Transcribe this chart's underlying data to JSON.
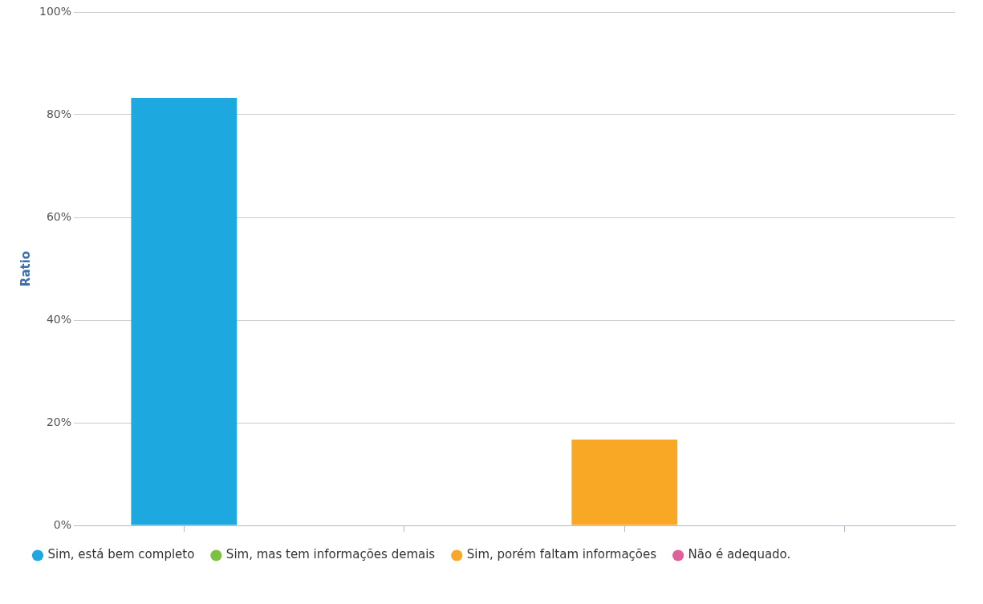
{
  "chart_data": {
    "type": "bar",
    "ylabel": "Ratio",
    "categories": [
      null,
      null,
      null,
      null
    ],
    "series": [
      {
        "name": "Sim, está bem completo",
        "color": "#1ea8e0",
        "values": [
          83.3,
          null,
          null,
          null
        ]
      },
      {
        "name": "Sim, mas tem informações demais",
        "color": "#7dc142",
        "values": [
          null,
          0,
          null,
          null
        ]
      },
      {
        "name": "Sim, porém faltam informações",
        "color": "#f9a825",
        "values": [
          null,
          null,
          16.7,
          null
        ]
      },
      {
        "name": "Não é adequado.",
        "color": "#e0609c",
        "values": [
          null,
          null,
          null,
          0
        ]
      }
    ],
    "ylim": [
      0,
      100
    ],
    "yticks": [
      {
        "value": 0,
        "label": "0%"
      },
      {
        "value": 20,
        "label": "20%"
      },
      {
        "value": 40,
        "label": "40%"
      },
      {
        "value": 60,
        "label": "60%"
      },
      {
        "value": 80,
        "label": "80%"
      },
      {
        "value": 100,
        "label": "100%"
      }
    ],
    "grid": "y",
    "legend": "bottom",
    "tick_labels": "y"
  }
}
